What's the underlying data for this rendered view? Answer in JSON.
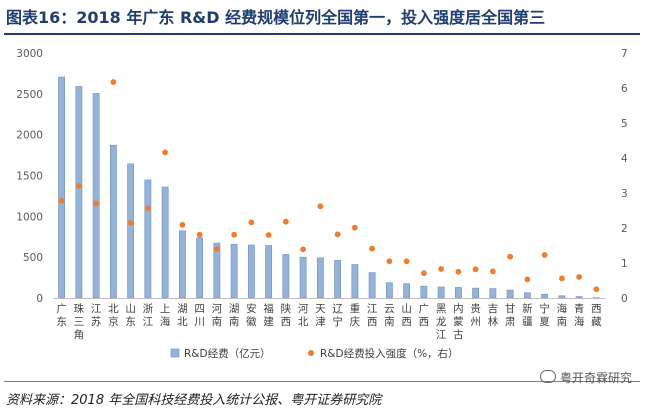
{
  "title": "图表16：2018 年广东 R&D 经费规模位列全国第一，投入强度居全国第三",
  "source": "资料来源：2018 年全国科技经费投入统计公报、粤开证券研究院",
  "watermark": "粤开奇霖研究",
  "chart_data": {
    "type": "bar",
    "categories": [
      "广东",
      "珠三角",
      "江苏",
      "北京",
      "山东",
      "浙江",
      "上海",
      "湖北",
      "四川",
      "河南",
      "湖南",
      "安徽",
      "福建",
      "陕西",
      "河北",
      "天津",
      "辽宁",
      "重庆",
      "江西",
      "云南",
      "山西",
      "广西",
      "黑龙江",
      "内蒙古",
      "贵州",
      "吉林",
      "甘肃",
      "新疆",
      "宁夏",
      "海南",
      "青海",
      "西藏"
    ],
    "category_labels": [
      [
        "广",
        "东"
      ],
      [
        "珠",
        "三",
        "角"
      ],
      [
        "江",
        "苏"
      ],
      [
        "北",
        "京"
      ],
      [
        "山",
        "东"
      ],
      [
        "浙",
        "江"
      ],
      [
        "上",
        "海"
      ],
      [
        "湖",
        "北"
      ],
      [
        "四",
        "川"
      ],
      [
        "河",
        "南"
      ],
      [
        "湖",
        "南"
      ],
      [
        "安",
        "徽"
      ],
      [
        "福",
        "建"
      ],
      [
        "陕",
        "西"
      ],
      [
        "河",
        "北"
      ],
      [
        "天",
        "津"
      ],
      [
        "辽",
        "宁"
      ],
      [
        "重",
        "庆"
      ],
      [
        "江",
        "西"
      ],
      [
        "云",
        "南"
      ],
      [
        "山",
        "西"
      ],
      [
        "广",
        "西"
      ],
      [
        "黑",
        "龙",
        "江"
      ],
      [
        "内",
        "蒙",
        "古"
      ],
      [
        "贵",
        "州"
      ],
      [
        "吉",
        "林"
      ],
      [
        "甘",
        "肃"
      ],
      [
        "新",
        "疆"
      ],
      [
        "宁",
        "夏"
      ],
      [
        "海",
        "南"
      ],
      [
        "青",
        "海"
      ],
      [
        "西",
        "藏"
      ]
    ],
    "series": [
      {
        "name": "R&D经费（亿元）",
        "type": "bar",
        "axis": "left",
        "values": [
          2705,
          2590,
          2505,
          1871,
          1643,
          1446,
          1359,
          823,
          737,
          672,
          658,
          649,
          642,
          533,
          500,
          492,
          461,
          410,
          311,
          187,
          175,
          145,
          135,
          129,
          121,
          115,
          97,
          64,
          46,
          27,
          17,
          4
        ]
      },
      {
        "name": "R&D经费投入强度（%，右）",
        "type": "scatter",
        "axis": "right",
        "values": [
          2.78,
          3.2,
          2.7,
          6.17,
          2.15,
          2.57,
          4.16,
          2.09,
          1.81,
          1.4,
          1.81,
          2.16,
          1.8,
          2.18,
          1.39,
          2.62,
          1.82,
          2.01,
          1.41,
          1.05,
          1.05,
          0.71,
          0.83,
          0.75,
          0.82,
          0.76,
          1.18,
          0.53,
          1.23,
          0.56,
          0.6,
          0.25
        ]
      }
    ],
    "ylim_left": [
      0,
      3000
    ],
    "yticks_left": [
      0,
      500,
      1000,
      1500,
      2000,
      2500,
      3000
    ],
    "ylim_right": [
      0,
      7
    ],
    "yticks_right": [
      0,
      1,
      2,
      3,
      4,
      5,
      6,
      7
    ],
    "grid": false,
    "legend_position": "bottom",
    "colors": {
      "bar": "#95b3d7",
      "bar_edge": "#6f8fc0",
      "dot": "#ed7d31",
      "axis": "#bfbfbf"
    }
  }
}
